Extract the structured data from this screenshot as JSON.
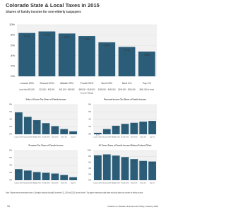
{
  "chart_data": [
    {
      "type": "bar",
      "title": "Colorado State & Local Taxes in 2015",
      "subtitle": "Shares of family income for non-elderly taxpayers",
      "categories": [
        "Lowest 20%",
        "Second 20%",
        "Middle 20%",
        "Fourth 20%",
        "Next 15%",
        "Next 4%",
        "Top 1%"
      ],
      "income_ranges": [
        "Less than $23,000",
        "$23,000 – $42,000",
        "$42,000 – $68,000",
        "$68,000 – $108,000",
        "$108,000 – $245,000",
        "$245,000 – $561,000",
        "$561,000 or more"
      ],
      "income_range_label": "Income Range",
      "values": [
        8.4,
        8.7,
        8.3,
        7.8,
        6.6,
        5.7,
        4.8
      ],
      "value_labels": [
        "8.4%",
        "8.7%",
        "8.3%",
        "7.8%",
        "6.6%",
        "5.7%",
        "4.8%"
      ],
      "color": "#2b5d78",
      "ylim": [
        0,
        10
      ],
      "yticks": [
        {
          "value": 0,
          "label": "0%"
        },
        {
          "value": 2,
          "label": "2%"
        },
        {
          "value": 4,
          "label": "4%"
        },
        {
          "value": 6,
          "label": "6%"
        },
        {
          "value": 8,
          "label": "8%"
        },
        {
          "value": 10,
          "label": "10%"
        }
      ],
      "grid": true
    },
    {
      "type": "bar",
      "title": "Sales & Excise Tax Share of Family Income",
      "categories": [
        "Lowest 20%",
        "Second 20%",
        "Middle 20%",
        "Fourth 20%",
        "Next 15%",
        "Next 4%",
        "Top 1%"
      ],
      "values": [
        5.9,
        4.7,
        3.8,
        3.0,
        2.2,
        1.4,
        0.8
      ],
      "value_labels": [
        "5.9%",
        "4.7%",
        "3.8%",
        "3.0%",
        "2.2%",
        "1.4%",
        "0.8%"
      ],
      "color": "#2b5d78",
      "ylim": [
        0,
        8
      ],
      "yticks": [
        {
          "value": 0,
          "label": "0%"
        },
        {
          "value": 2,
          "label": "2%"
        },
        {
          "value": 4,
          "label": "4%"
        },
        {
          "value": 6,
          "label": "6%"
        },
        {
          "value": 8,
          "label": "8%"
        }
      ],
      "grid": true
    },
    {
      "type": "bar",
      "title": "Personal Income Tax Share of Family Income",
      "categories": [
        "Lowest 20%",
        "Second 20%",
        "Middle 20%",
        "Fourth 20%",
        "Next 15%",
        "Next 4%",
        "Top 1%"
      ],
      "values": [
        0.4,
        1.4,
        2.3,
        2.8,
        3.1,
        3.4,
        3.6
      ],
      "value_labels": [
        "0.4%",
        "1.4%",
        "2.3%",
        "2.8%",
        "3.1%",
        "3.4%",
        "3.6%"
      ],
      "color": "#2b5d78",
      "ylim": [
        0,
        8
      ],
      "yticks": [
        {
          "value": 0,
          "label": "0%"
        },
        {
          "value": 2,
          "label": "2%"
        },
        {
          "value": 4,
          "label": "4%"
        },
        {
          "value": 6,
          "label": "6%"
        },
        {
          "value": 8,
          "label": "8%"
        }
      ],
      "grid": true
    },
    {
      "type": "bar",
      "title": "Property Tax Share of Family Income",
      "categories": [
        "Lowest 20%",
        "Second 20%",
        "Middle 20%",
        "Fourth 20%",
        "Next 15%",
        "Next 4%",
        "Top 1%"
      ],
      "values": [
        3.0,
        2.6,
        2.2,
        2.0,
        1.8,
        1.4,
        0.8
      ],
      "value_labels": [
        "3.0%",
        "2.6%",
        "2.2%",
        "2.0%",
        "1.8%",
        "1.4%",
        "0.8%"
      ],
      "color": "#2b5d78",
      "ylim": [
        0,
        8
      ],
      "yticks": [
        {
          "value": 0,
          "label": "0%"
        },
        {
          "value": 2,
          "label": "2%"
        },
        {
          "value": 4,
          "label": "4%"
        },
        {
          "value": 6,
          "label": "6%"
        },
        {
          "value": 8,
          "label": "8%"
        }
      ],
      "grid": true
    },
    {
      "type": "bar",
      "title": "All Taxes Share of Family Income Without Federal Offset",
      "categories": [
        "Lowest 20%",
        "Second 20%",
        "Middle 20%",
        "Fourth 20%",
        "Next 15%",
        "Next 4%",
        "Top 1%"
      ],
      "values": [
        8.4,
        8.7,
        8.3,
        7.8,
        7.1,
        6.5,
        6.3
      ],
      "value_labels": [
        "8.4%",
        "8.7%",
        "8.3%",
        "7.8%",
        "7.1%",
        "6.5%",
        "6.3%"
      ],
      "color": "#2b5d78",
      "ylim": [
        0,
        10
      ],
      "yticks": [
        {
          "value": 0,
          "label": "0%"
        },
        {
          "value": 2,
          "label": "2%"
        },
        {
          "value": 4,
          "label": "4%"
        },
        {
          "value": 6,
          "label": "6%"
        },
        {
          "value": 8,
          "label": "8%"
        },
        {
          "value": 10,
          "label": "10%"
        }
      ],
      "grid": true
    }
  ],
  "note": "Note: Figures show permanent law in Colorado enacted through December 31, 2014 at 2012 income levels. Top figure represents total state and local taxes as a share of family income.",
  "footer": {
    "page": "10",
    "source": "Institute on Taxation & Economic Policy, January 2015"
  }
}
